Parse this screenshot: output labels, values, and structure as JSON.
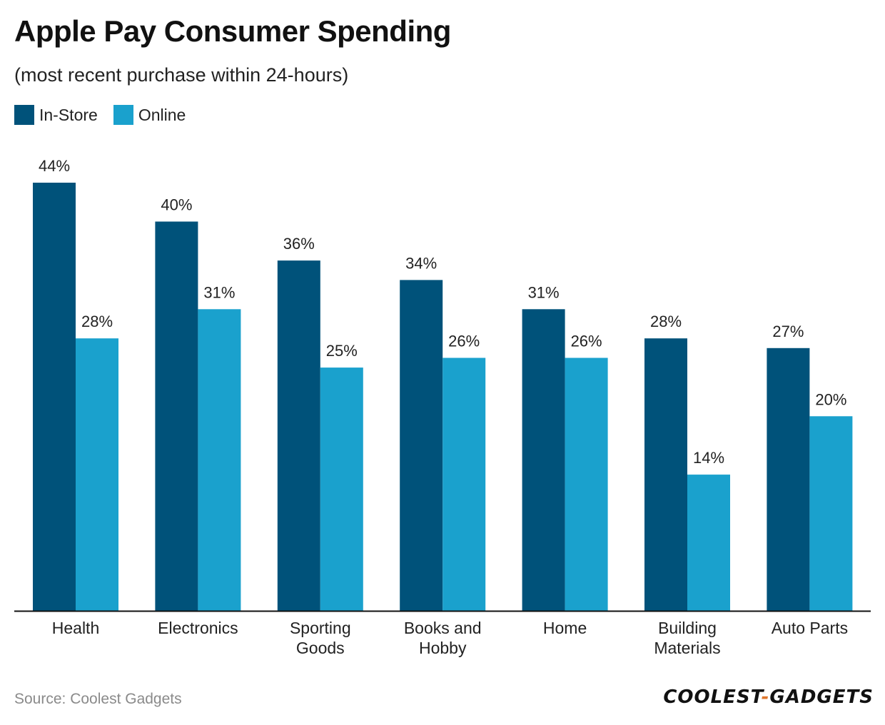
{
  "chart_data": {
    "type": "bar",
    "title": "Apple Pay Consumer Spending",
    "subtitle": "(most recent purchase within 24-hours)",
    "categories": [
      [
        "Health"
      ],
      [
        "Electronics"
      ],
      [
        "Sporting",
        "Goods"
      ],
      [
        "Books and",
        "Hobby"
      ],
      [
        "Home"
      ],
      [
        "Building",
        "Materials"
      ],
      [
        "Auto Parts"
      ]
    ],
    "series": [
      {
        "name": "In-Store",
        "color": "#00527a",
        "values": [
          44,
          40,
          36,
          34,
          31,
          28,
          27
        ],
        "labels": [
          "44%",
          "40%",
          "36%",
          "34%",
          "31%",
          "28%",
          "27%"
        ]
      },
      {
        "name": "Online",
        "color": "#1aa1cd",
        "values": [
          28,
          31,
          25,
          26,
          26,
          14,
          20
        ],
        "labels": [
          "28%",
          "31%",
          "25%",
          "26%",
          "26%",
          "14%",
          "20%"
        ]
      }
    ],
    "xlabel": "",
    "ylabel": "",
    "ylim": [
      0,
      44
    ],
    "grid": false,
    "legend_position": "top-left"
  },
  "legend": {
    "in_store": "In-Store",
    "online": "Online"
  },
  "footer": {
    "source": "Source: Coolest Gadgets",
    "brand_left": "COOLEST",
    "brand_dash": "-",
    "brand_right": "GADGETS"
  }
}
